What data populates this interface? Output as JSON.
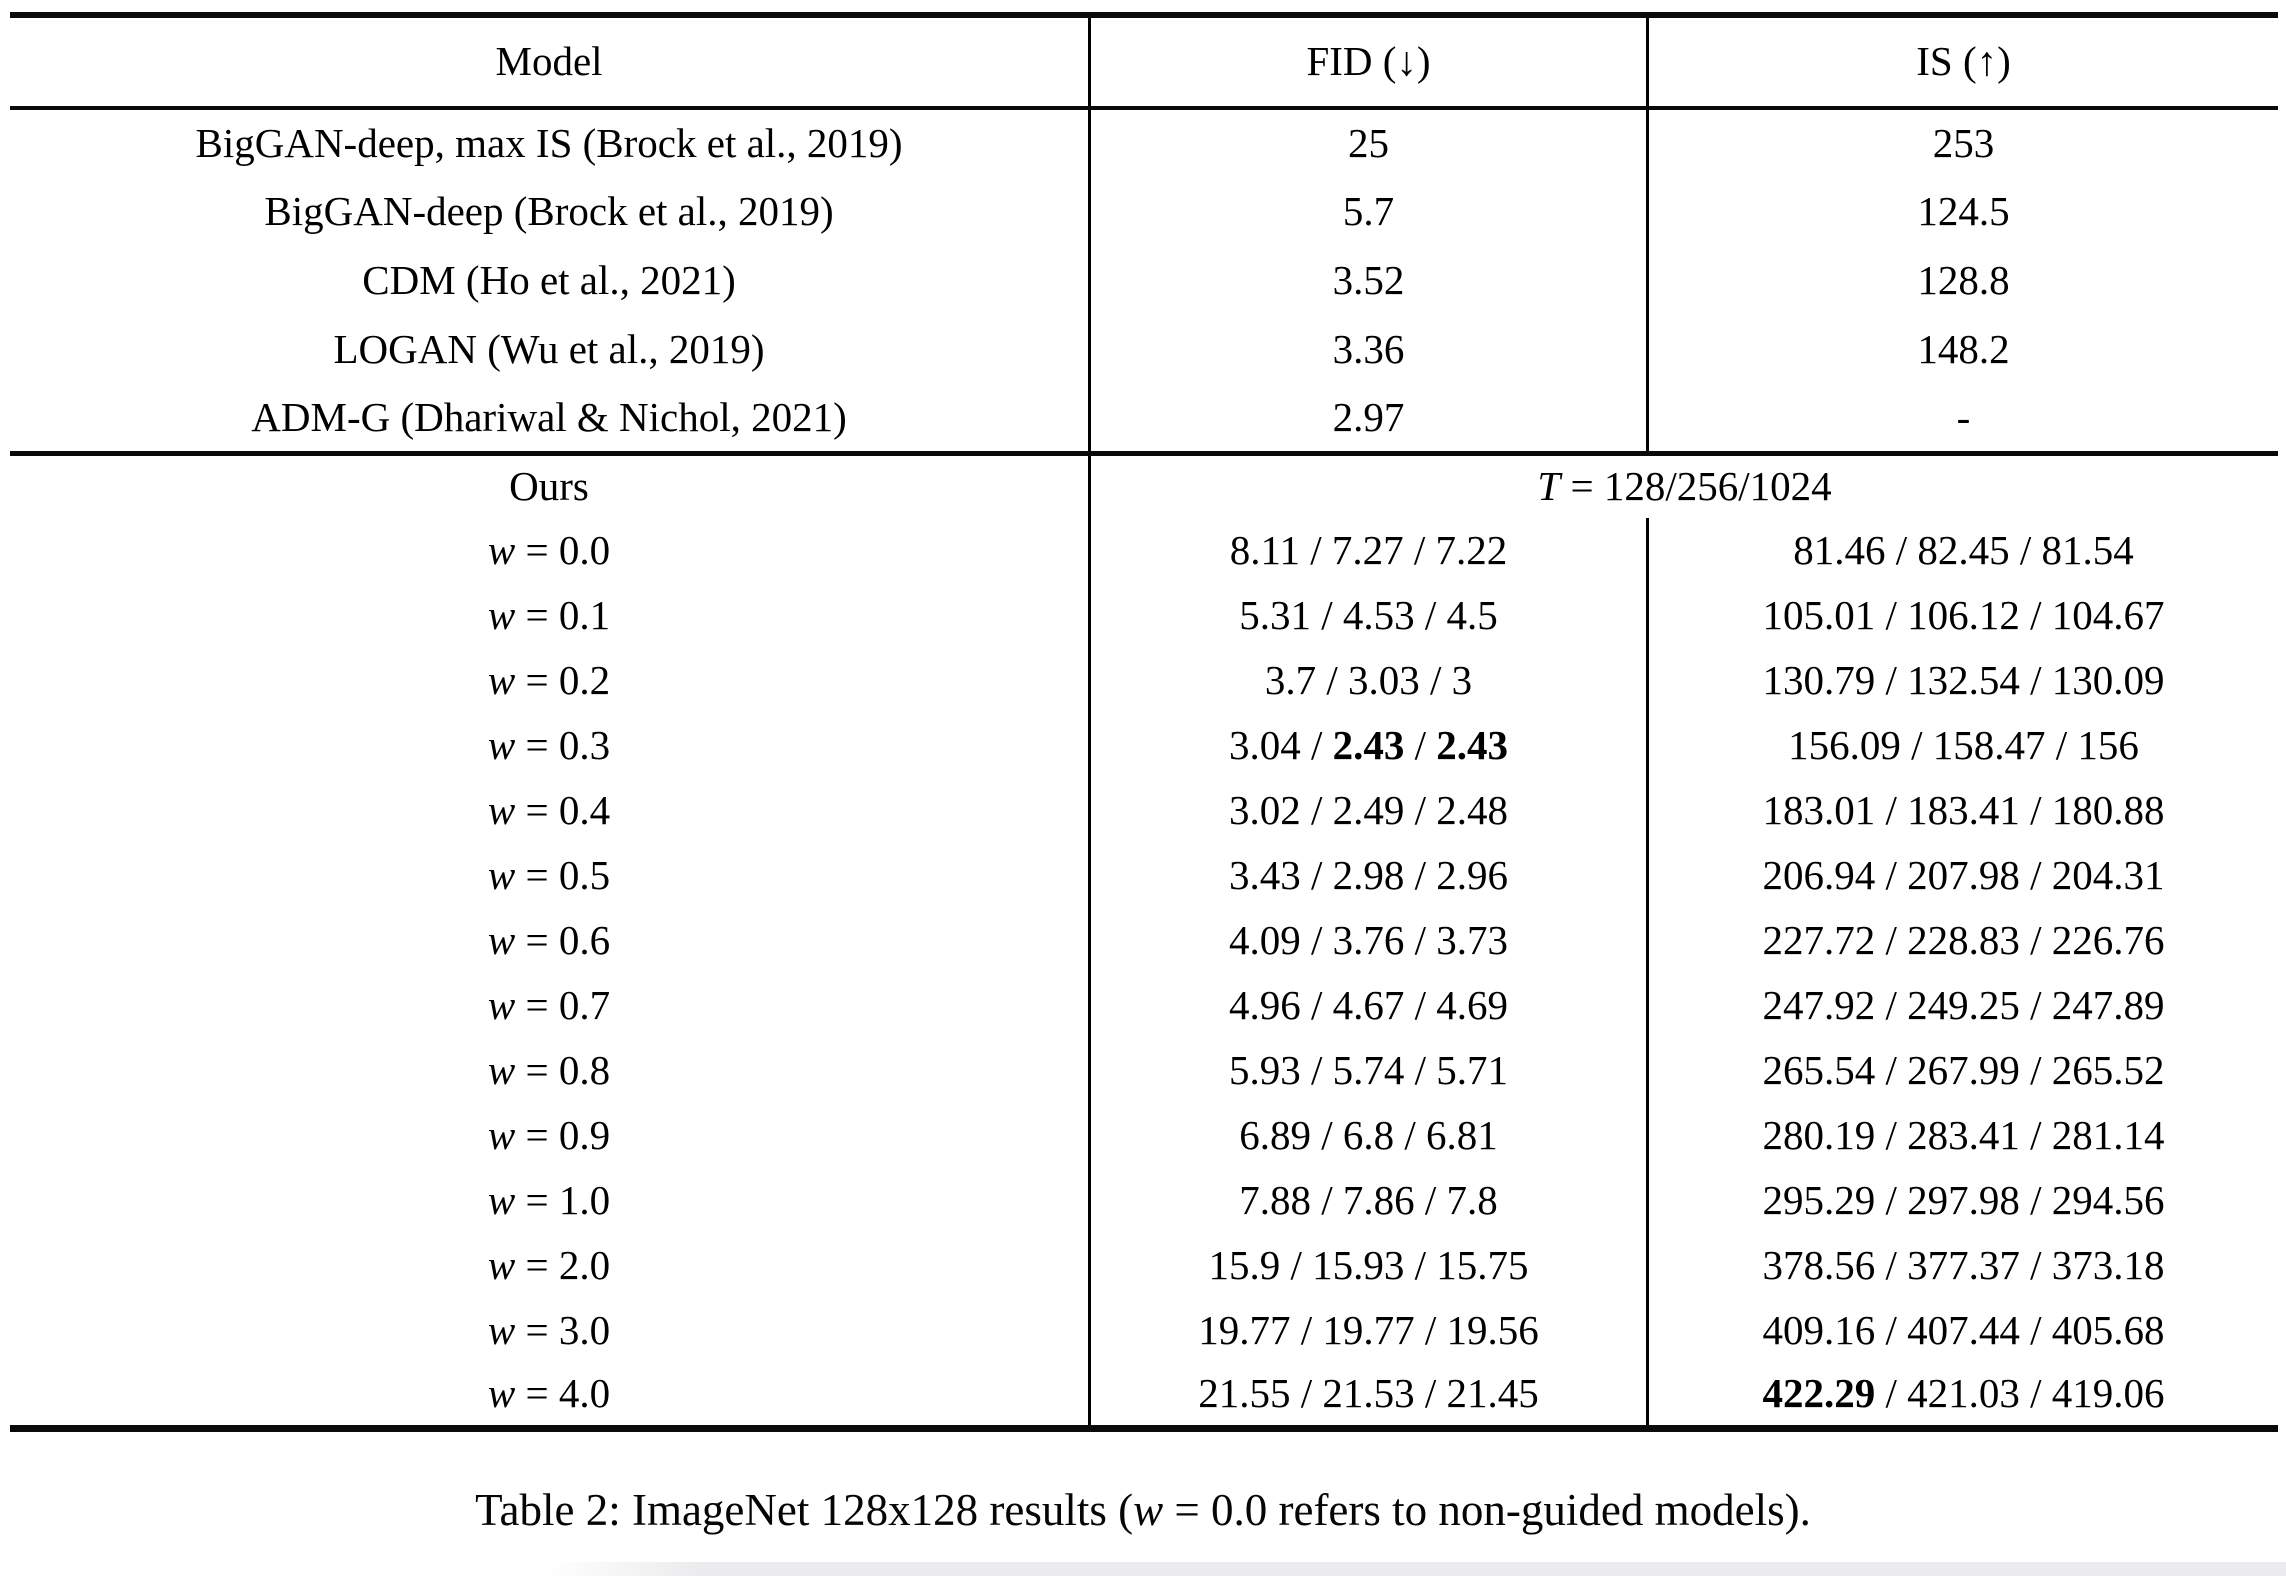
{
  "page": {
    "background": "#ffffff",
    "text_color": "#000000"
  },
  "table": {
    "columns": {
      "model": "Model",
      "fid": "FID (↓)",
      "is": "IS (↑)"
    },
    "baseline_rows": [
      {
        "model": "BigGAN-deep, max IS (Brock et al., 2019)",
        "fid": "25",
        "is": "253"
      },
      {
        "model": "BigGAN-deep (Brock et al., 2019)",
        "fid": "5.7",
        "is": "124.5"
      },
      {
        "model": "CDM (Ho et al., 2021)",
        "fid": "3.52",
        "is": "128.8"
      },
      {
        "model": "LOGAN (Wu et al., 2019)",
        "fid": "3.36",
        "is": "148.2"
      },
      {
        "model": "ADM-G (Dhariwal & Nichol, 2021)",
        "fid": "2.97",
        "is": "-"
      }
    ],
    "ours_section": {
      "label": "Ours",
      "t_variable": "T",
      "t_rest": " = 128/256/1024",
      "w_variable": "w",
      "equals": " = ",
      "separator": " / ",
      "rows": [
        {
          "w": "0.0",
          "fid": [
            "8.11",
            "7.27",
            "7.22"
          ],
          "fid_bold": [
            false,
            false,
            false
          ],
          "is": [
            "81.46",
            "82.45",
            "81.54"
          ],
          "is_bold": [
            false,
            false,
            false
          ]
        },
        {
          "w": "0.1",
          "fid": [
            "5.31",
            "4.53",
            "4.5"
          ],
          "fid_bold": [
            false,
            false,
            false
          ],
          "is": [
            "105.01",
            "106.12",
            "104.67"
          ],
          "is_bold": [
            false,
            false,
            false
          ]
        },
        {
          "w": "0.2",
          "fid": [
            "3.7",
            "3.03",
            "3"
          ],
          "fid_bold": [
            false,
            false,
            false
          ],
          "is": [
            "130.79",
            "132.54",
            "130.09"
          ],
          "is_bold": [
            false,
            false,
            false
          ]
        },
        {
          "w": "0.3",
          "fid": [
            "3.04",
            "2.43",
            "2.43"
          ],
          "fid_bold": [
            false,
            true,
            true
          ],
          "is": [
            "156.09",
            "158.47",
            "156"
          ],
          "is_bold": [
            false,
            false,
            false
          ]
        },
        {
          "w": "0.4",
          "fid": [
            "3.02",
            "2.49",
            "2.48"
          ],
          "fid_bold": [
            false,
            false,
            false
          ],
          "is": [
            "183.01",
            "183.41",
            "180.88"
          ],
          "is_bold": [
            false,
            false,
            false
          ]
        },
        {
          "w": "0.5",
          "fid": [
            "3.43",
            "2.98",
            "2.96"
          ],
          "fid_bold": [
            false,
            false,
            false
          ],
          "is": [
            "206.94",
            "207.98",
            "204.31"
          ],
          "is_bold": [
            false,
            false,
            false
          ]
        },
        {
          "w": "0.6",
          "fid": [
            "4.09",
            "3.76",
            "3.73"
          ],
          "fid_bold": [
            false,
            false,
            false
          ],
          "is": [
            "227.72",
            "228.83",
            "226.76"
          ],
          "is_bold": [
            false,
            false,
            false
          ]
        },
        {
          "w": "0.7",
          "fid": [
            "4.96",
            "4.67",
            "4.69"
          ],
          "fid_bold": [
            false,
            false,
            false
          ],
          "is": [
            "247.92",
            "249.25",
            "247.89"
          ],
          "is_bold": [
            false,
            false,
            false
          ]
        },
        {
          "w": "0.8",
          "fid": [
            "5.93",
            "5.74",
            "5.71"
          ],
          "fid_bold": [
            false,
            false,
            false
          ],
          "is": [
            "265.54",
            "267.99",
            "265.52"
          ],
          "is_bold": [
            false,
            false,
            false
          ]
        },
        {
          "w": "0.9",
          "fid": [
            "6.89",
            "6.8",
            "6.81"
          ],
          "fid_bold": [
            false,
            false,
            false
          ],
          "is": [
            "280.19",
            "283.41",
            "281.14"
          ],
          "is_bold": [
            false,
            false,
            false
          ]
        },
        {
          "w": "1.0",
          "fid": [
            "7.88",
            "7.86",
            "7.8"
          ],
          "fid_bold": [
            false,
            false,
            false
          ],
          "is": [
            "295.29",
            "297.98",
            "294.56"
          ],
          "is_bold": [
            false,
            false,
            false
          ]
        },
        {
          "w": "2.0",
          "fid": [
            "15.9",
            "15.93",
            "15.75"
          ],
          "fid_bold": [
            false,
            false,
            false
          ],
          "is": [
            "378.56",
            "377.37",
            "373.18"
          ],
          "is_bold": [
            false,
            false,
            false
          ]
        },
        {
          "w": "3.0",
          "fid": [
            "19.77",
            "19.77",
            "19.56"
          ],
          "fid_bold": [
            false,
            false,
            false
          ],
          "is": [
            "409.16",
            "407.44",
            "405.68"
          ],
          "is_bold": [
            false,
            false,
            false
          ]
        },
        {
          "w": "4.0",
          "fid": [
            "21.55",
            "21.53",
            "21.45"
          ],
          "fid_bold": [
            false,
            false,
            false
          ],
          "is": [
            "422.29",
            "421.03",
            "419.06"
          ],
          "is_bold": [
            true,
            false,
            false
          ]
        }
      ]
    }
  },
  "caption": {
    "prefix": "Table 2: ImageNet 128x128 results (",
    "variable": "w",
    "suffix": " = 0.0 refers to non-guided models)."
  }
}
